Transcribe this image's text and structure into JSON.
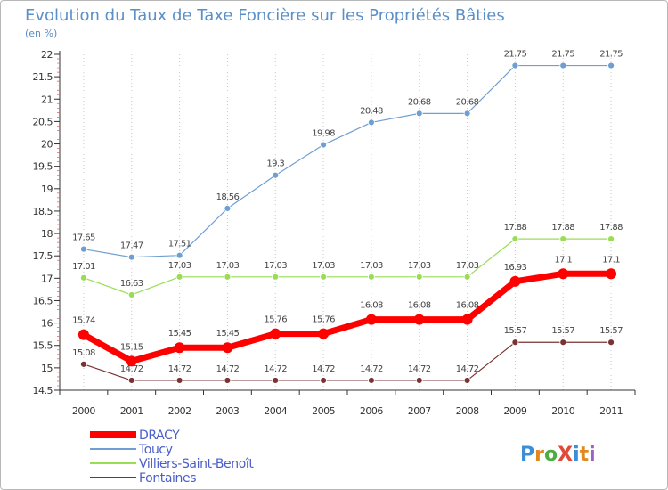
{
  "chart_data": {
    "type": "line",
    "title": "Evolution du Taux de Taxe Foncière sur les Propriétés Bâties",
    "subtitle": "(en %)",
    "xlabel": "",
    "ylabel": "",
    "x": [
      "2000",
      "2001",
      "2002",
      "2003",
      "2004",
      "2005",
      "2006",
      "2007",
      "2008",
      "2009",
      "2010",
      "2011"
    ],
    "ylim": [
      14.5,
      22
    ],
    "yticks": [
      "14.5",
      "15",
      "15.5",
      "16",
      "16.5",
      "17",
      "17.5",
      "18",
      "18.5",
      "19",
      "19.5",
      "20",
      "20.5",
      "21",
      "21.5",
      "22"
    ],
    "grid": "vertical dotted",
    "legend_position": "bottom-left",
    "series": [
      {
        "name": "DRACY",
        "color": "#ff0000",
        "values": [
          15.74,
          15.15,
          15.45,
          15.45,
          15.76,
          15.76,
          16.08,
          16.08,
          16.08,
          16.93,
          17.1,
          17.1
        ],
        "labels": [
          "15.74",
          "15.15",
          "15.45",
          "15.45",
          "15.76",
          "15.76",
          "16.08",
          "16.08",
          "16.08",
          "16.93",
          "17.1",
          "17.1"
        ]
      },
      {
        "name": "Toucy",
        "color": "#6f9fd2",
        "values": [
          17.65,
          17.47,
          17.51,
          18.56,
          19.3,
          19.98,
          20.48,
          20.68,
          20.68,
          21.75,
          21.75,
          21.75
        ],
        "labels": [
          "17.65",
          "17.47",
          "17.51",
          "18.56",
          "19.3",
          "19.98",
          "20.48",
          "20.68",
          "20.68",
          "21.75",
          "21.75",
          "21.75"
        ]
      },
      {
        "name": "Villiers-Saint-Benoît",
        "color": "#99dd55",
        "values": [
          17.01,
          16.63,
          17.03,
          17.03,
          17.03,
          17.03,
          17.03,
          17.03,
          17.03,
          17.88,
          17.88,
          17.88
        ],
        "labels": [
          "17.01",
          "16.63",
          "17.03",
          "17.03",
          "17.03",
          "17.03",
          "17.03",
          "17.03",
          "17.03",
          "17.88",
          "17.88",
          "17.88"
        ]
      },
      {
        "name": "Fontaines",
        "color": "#7a3333",
        "values": [
          15.08,
          14.72,
          14.72,
          14.72,
          14.72,
          14.72,
          14.72,
          14.72,
          14.72,
          15.57,
          15.57,
          15.57
        ],
        "labels": [
          "15.08",
          "14.72",
          "14.72",
          "14.72",
          "14.72",
          "14.72",
          "14.72",
          "14.72",
          "14.72",
          "15.57",
          "15.57",
          "15.57"
        ]
      }
    ]
  },
  "logo": {
    "text": "ProXiti"
  }
}
